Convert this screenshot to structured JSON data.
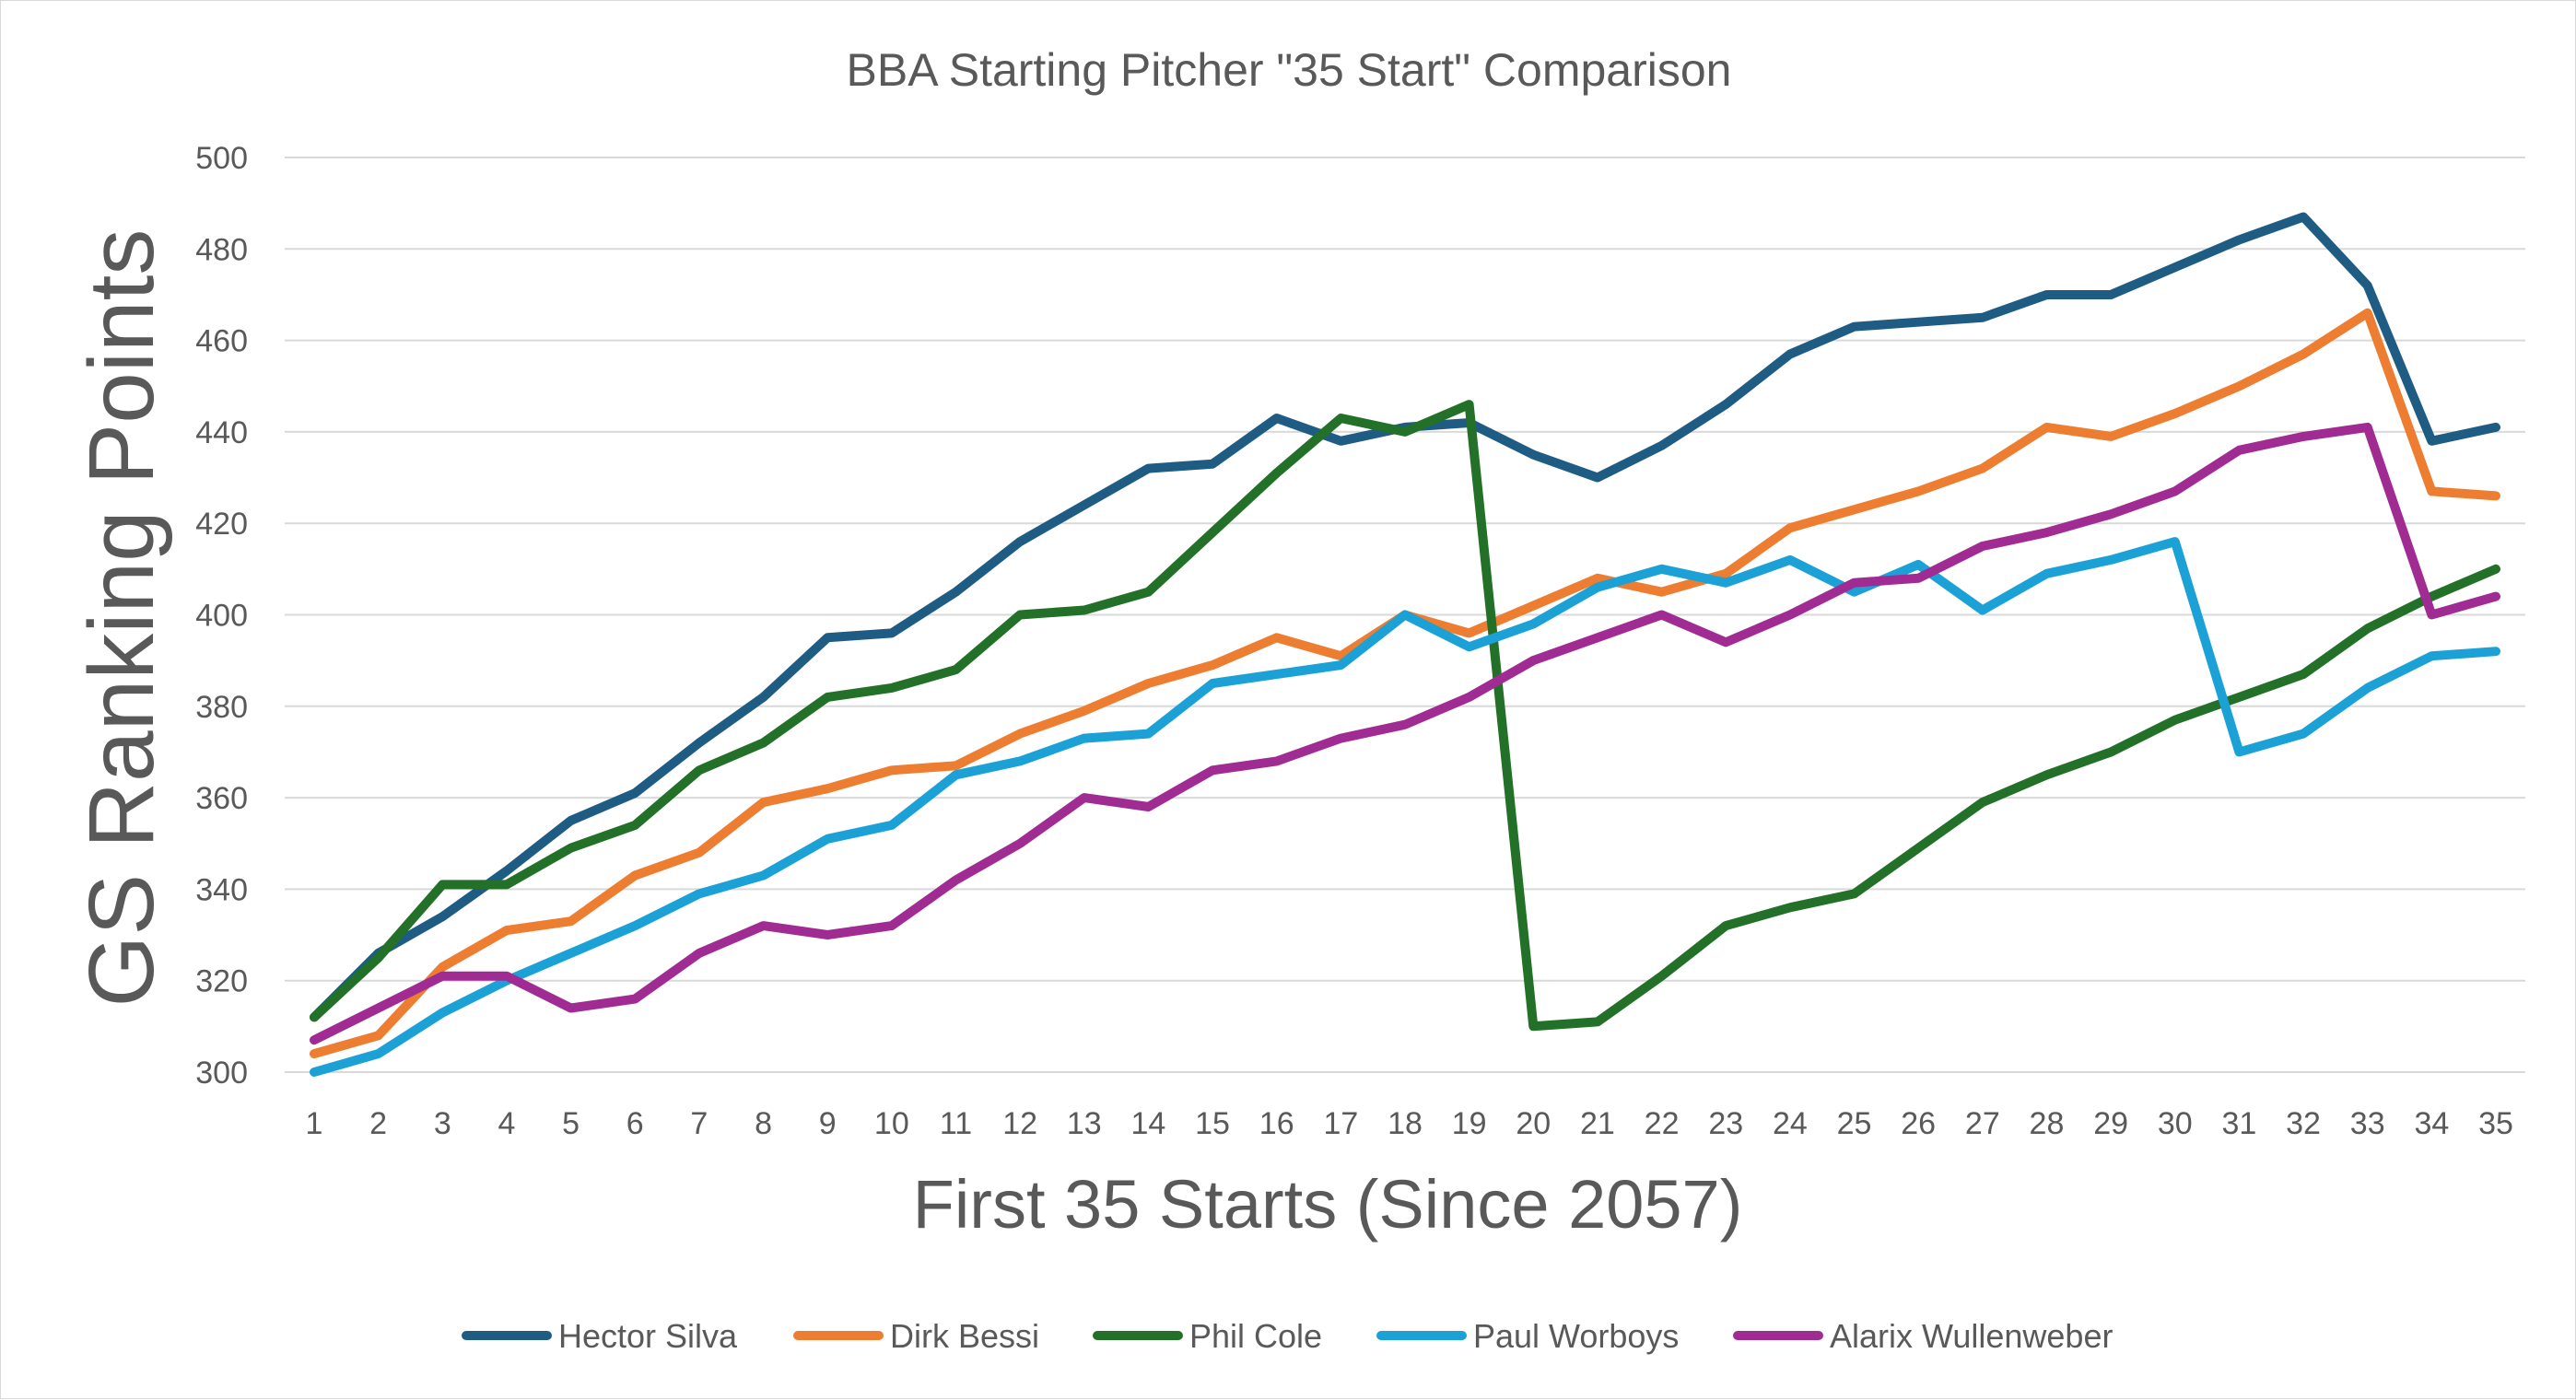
{
  "chart_data": {
    "type": "line",
    "title": "BBA Starting Pitcher \"35 Start\" Comparison",
    "xlabel": "First 35 Starts (Since 2057)",
    "ylabel": "GS Ranking Points",
    "ylim": [
      300,
      500
    ],
    "yticks": [
      "300",
      "320",
      "340",
      "360",
      "380",
      "400",
      "420",
      "440",
      "460",
      "480",
      "500"
    ],
    "categories": [
      "1",
      "2",
      "3",
      "4",
      "5",
      "6",
      "7",
      "8",
      "9",
      "10",
      "11",
      "12",
      "13",
      "14",
      "15",
      "16",
      "17",
      "18",
      "19",
      "20",
      "21",
      "22",
      "23",
      "24",
      "25",
      "26",
      "27",
      "28",
      "29",
      "30",
      "31",
      "32",
      "33",
      "34",
      "35"
    ],
    "grid": true,
    "legend_position": "bottom",
    "series": [
      {
        "name": "Hector Silva",
        "color": "#1f5c84",
        "values": [
          312,
          326,
          334,
          344,
          355,
          361,
          372,
          382,
          395,
          396,
          405,
          416,
          424,
          432,
          433,
          443,
          438,
          441,
          442,
          435,
          430,
          437,
          446,
          457,
          463,
          464,
          465,
          470,
          470,
          476,
          482,
          487,
          472,
          438,
          441
        ]
      },
      {
        "name": "Dirk Bessi",
        "color": "#ed7d31",
        "values": [
          304,
          308,
          323,
          331,
          333,
          343,
          348,
          359,
          362,
          366,
          367,
          374,
          379,
          385,
          389,
          395,
          391,
          400,
          396,
          402,
          408,
          405,
          409,
          419,
          423,
          427,
          432,
          441,
          439,
          444,
          450,
          457,
          466,
          427,
          426
        ]
      },
      {
        "name": "Phil Cole",
        "color": "#237028",
        "values": [
          312,
          325,
          341,
          341,
          349,
          354,
          366,
          372,
          382,
          384,
          388,
          400,
          401,
          405,
          418,
          431,
          443,
          440,
          446,
          310,
          311,
          321,
          332,
          336,
          339,
          349,
          359,
          365,
          370,
          377,
          382,
          387,
          397,
          404,
          410
        ]
      },
      {
        "name": "Paul Worboys",
        "color": "#1ba1d6",
        "values": [
          300,
          304,
          313,
          320,
          326,
          332,
          339,
          343,
          351,
          354,
          365,
          368,
          373,
          374,
          385,
          387,
          389,
          400,
          393,
          398,
          406,
          410,
          407,
          412,
          405,
          411,
          401,
          409,
          412,
          416,
          370,
          374,
          384,
          391,
          392
        ]
      },
      {
        "name": "Alarix Wullenweber",
        "color": "#a02c93",
        "values": [
          307,
          314,
          321,
          321,
          314,
          316,
          326,
          332,
          330,
          332,
          342,
          350,
          360,
          358,
          366,
          368,
          373,
          376,
          382,
          390,
          395,
          400,
          394,
          400,
          407,
          408,
          415,
          418,
          422,
          427,
          436,
          439,
          441,
          400,
          404
        ]
      }
    ]
  }
}
